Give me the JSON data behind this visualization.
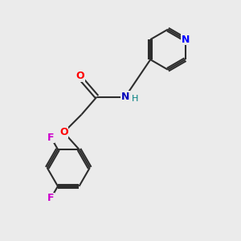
{
  "background_color": "#ebebeb",
  "bond_color": "#2d2d2d",
  "atom_colors": {
    "O": "#ff0000",
    "N_amide": "#0000bb",
    "F": "#cc00cc",
    "N_py": "#0000ff",
    "H": "#008080"
  },
  "figsize": [
    3.0,
    3.0
  ],
  "dpi": 100
}
